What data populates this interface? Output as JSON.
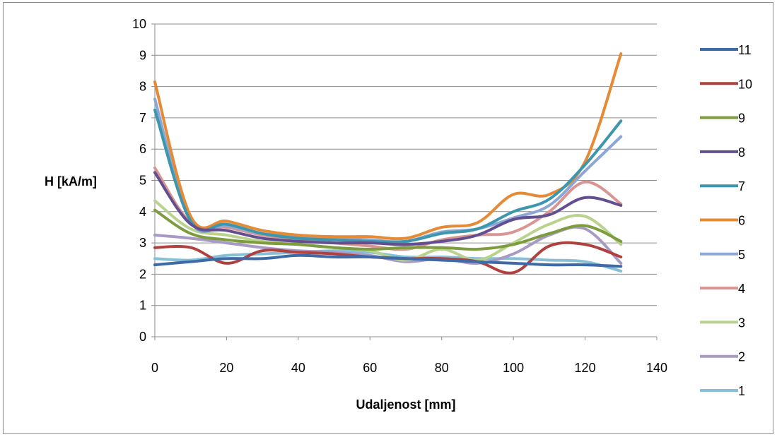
{
  "chart_data": {
    "type": "line",
    "title": "",
    "xlabel": "Udaljenost [mm]",
    "ylabel": "H [kA/m]",
    "xlim": [
      0,
      140
    ],
    "ylim": [
      0,
      10
    ],
    "x_ticks": [
      0,
      20,
      40,
      60,
      80,
      100,
      120,
      140
    ],
    "y_ticks": [
      0,
      1,
      2,
      3,
      4,
      5,
      6,
      7,
      8,
      9,
      10
    ],
    "grid": "horizontal",
    "legend_position": "right",
    "x": [
      0,
      10,
      20,
      30,
      40,
      50,
      60,
      70,
      80,
      90,
      100,
      110,
      120,
      130
    ],
    "series": [
      {
        "name": "11",
        "color": "#3F6AA8",
        "values": [
          2.3,
          2.4,
          2.5,
          2.5,
          2.6,
          2.55,
          2.55,
          2.5,
          2.45,
          2.4,
          2.35,
          2.3,
          2.3,
          2.25
        ]
      },
      {
        "name": "10",
        "color": "#B0413E",
        "values": [
          2.85,
          2.85,
          2.35,
          2.75,
          2.7,
          2.65,
          2.55,
          2.5,
          2.5,
          2.4,
          2.05,
          2.9,
          2.95,
          2.55
        ]
      },
      {
        "name": "9",
        "color": "#7C9C3D",
        "values": [
          4.05,
          3.3,
          3.1,
          3.0,
          2.95,
          2.85,
          2.8,
          2.85,
          2.85,
          2.8,
          2.95,
          3.3,
          3.55,
          3.05
        ]
      },
      {
        "name": "8",
        "color": "#634E8F",
        "values": [
          5.25,
          3.6,
          3.4,
          3.15,
          3.05,
          3.0,
          3.0,
          2.95,
          3.05,
          3.25,
          3.75,
          3.9,
          4.45,
          4.2
        ]
      },
      {
        "name": "7",
        "color": "#3B96AE",
        "values": [
          7.25,
          3.7,
          3.6,
          3.3,
          3.15,
          3.1,
          3.05,
          3.05,
          3.3,
          3.45,
          4.0,
          4.4,
          5.5,
          6.9
        ]
      },
      {
        "name": "6",
        "color": "#E58A36",
        "values": [
          8.15,
          3.85,
          3.7,
          3.4,
          3.25,
          3.2,
          3.2,
          3.15,
          3.5,
          3.65,
          4.55,
          4.55,
          5.6,
          9.05
        ]
      },
      {
        "name": "5",
        "color": "#8BA7D6",
        "values": [
          7.6,
          3.7,
          3.55,
          3.3,
          3.2,
          3.15,
          3.1,
          3.05,
          3.35,
          3.45,
          3.8,
          4.2,
          5.3,
          6.4
        ]
      },
      {
        "name": "4",
        "color": "#D99593",
        "values": [
          5.4,
          3.65,
          3.5,
          3.25,
          3.1,
          3.0,
          2.9,
          2.8,
          3.1,
          3.25,
          3.35,
          4.0,
          4.95,
          4.25
        ]
      },
      {
        "name": "3",
        "color": "#B9D28D",
        "values": [
          4.35,
          3.45,
          3.25,
          3.05,
          2.95,
          2.85,
          2.75,
          2.45,
          2.8,
          2.45,
          3.0,
          3.6,
          3.85,
          2.95
        ]
      },
      {
        "name": "2",
        "color": "#A79BC6",
        "values": [
          3.25,
          3.15,
          3.0,
          2.85,
          2.75,
          2.7,
          2.6,
          2.4,
          2.5,
          2.35,
          2.65,
          3.25,
          3.45,
          2.35
        ]
      },
      {
        "name": "1",
        "color": "#86C0D6",
        "values": [
          2.5,
          2.45,
          2.6,
          2.65,
          2.7,
          2.75,
          2.7,
          2.55,
          2.55,
          2.5,
          2.5,
          2.45,
          2.4,
          2.1
        ]
      }
    ]
  }
}
